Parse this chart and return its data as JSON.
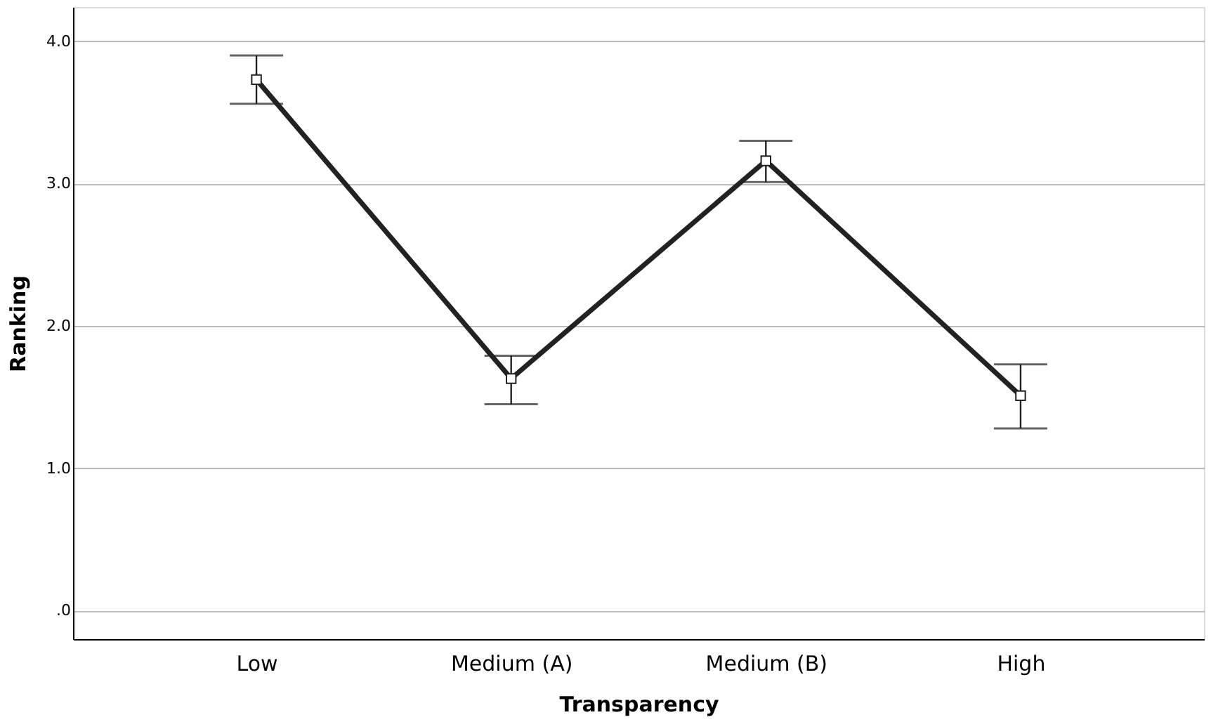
{
  "chart_data": {
    "type": "line",
    "xlabel": "Transparency",
    "ylabel": "Ranking",
    "categories": [
      "Low",
      "Medium (A)",
      "Medium (B)",
      "High"
    ],
    "series": [
      {
        "color": "#222222",
        "values": [
          3.73,
          1.63,
          3.16,
          1.51
        ],
        "errors": [
          [
            3.56,
            3.9
          ],
          [
            1.45,
            1.79
          ],
          [
            3.01,
            3.3
          ],
          [
            1.28,
            1.73
          ]
        ]
      }
    ],
    "ylim": [
      -0.2,
      4.24
    ],
    "yticks": [
      {
        "value": 0,
        "label": ".0"
      },
      {
        "value": 1,
        "label": "1.0"
      },
      {
        "value": 2,
        "label": "2.0"
      },
      {
        "value": 3,
        "label": "3.0"
      },
      {
        "value": 4,
        "label": "4.0"
      }
    ],
    "grid": "y",
    "marker": "square",
    "line_style": "solid"
  }
}
